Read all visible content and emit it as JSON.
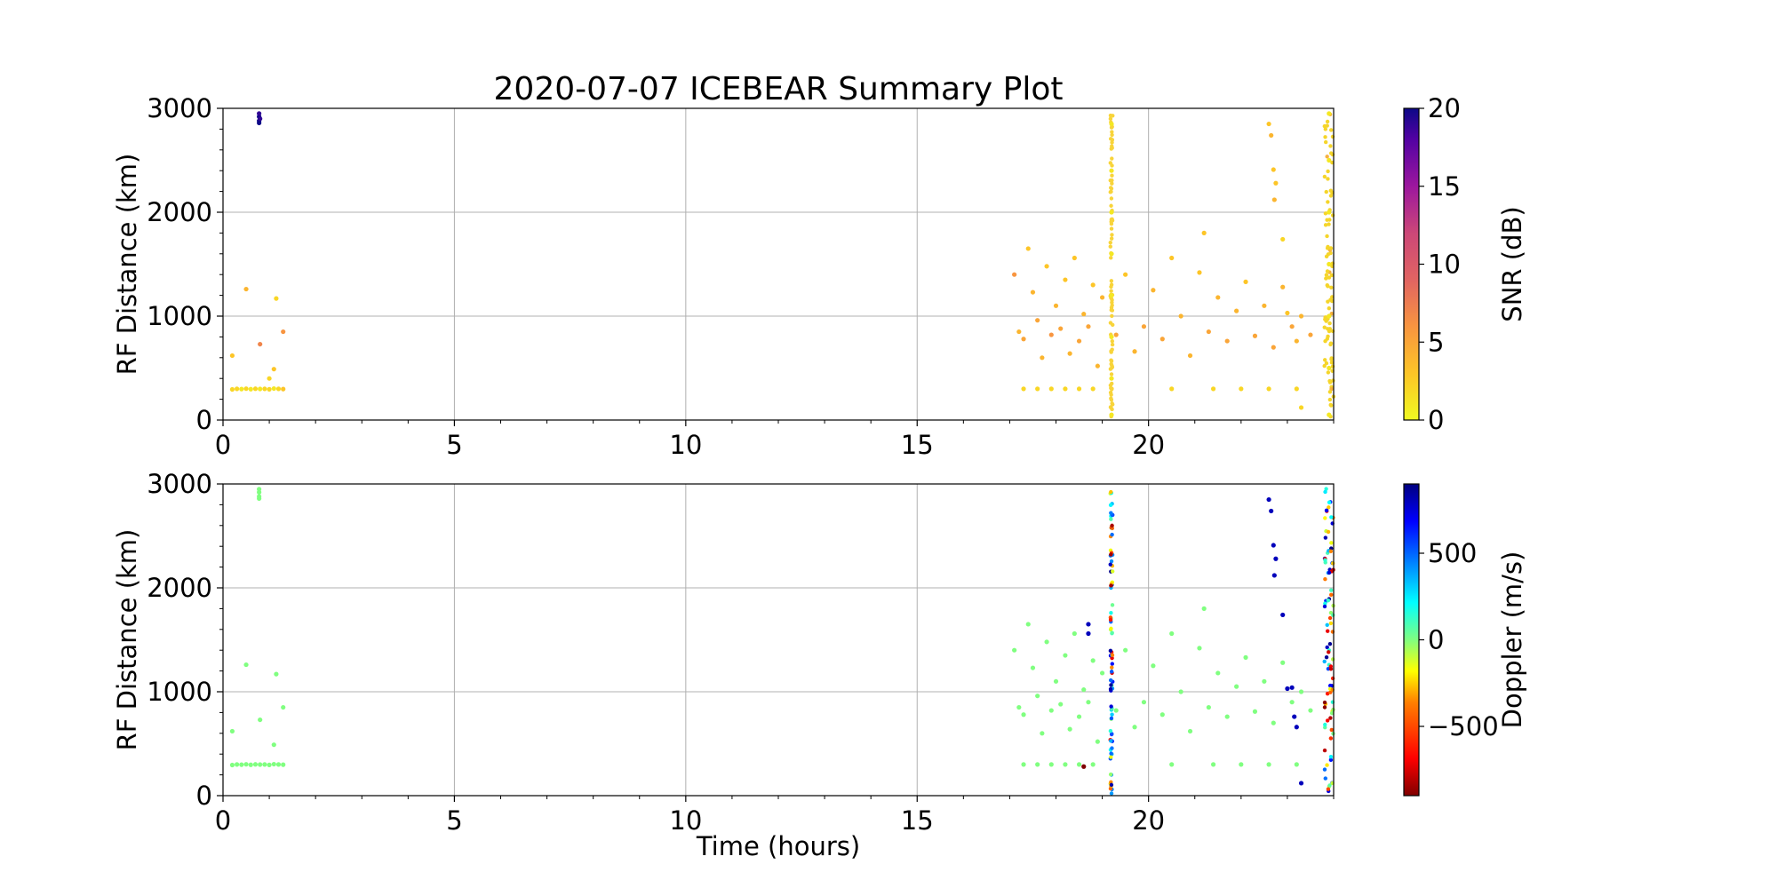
{
  "chart_data": [
    {
      "type": "scatter",
      "title": "2020-07-07 ICEBEAR Summary Plot",
      "xlabel": "",
      "ylabel": "RF Distance (km)",
      "xlim": [
        0,
        24
      ],
      "ylim": [
        0,
        3000
      ],
      "xticks": [
        "0",
        "5",
        "10",
        "15",
        "20"
      ],
      "yticks": [
        "0",
        "1000",
        "2000",
        "3000"
      ],
      "grid": true,
      "color_variable": "SNR",
      "colorbar": {
        "label": "SNR (dB)",
        "colormap": "plasma_r",
        "range": [
          0,
          20
        ],
        "ticks": [
          "0",
          "5",
          "10",
          "15",
          "20"
        ]
      },
      "points": [
        [
          0.2,
          295,
          2
        ],
        [
          0.3,
          300,
          2
        ],
        [
          0.4,
          298,
          1
        ],
        [
          0.5,
          302,
          2
        ],
        [
          0.6,
          297,
          1
        ],
        [
          0.7,
          301,
          2
        ],
        [
          0.8,
          299,
          1
        ],
        [
          0.9,
          300,
          2
        ],
        [
          1.0,
          296,
          2
        ],
        [
          1.1,
          303,
          1
        ],
        [
          1.2,
          300,
          2
        ],
        [
          1.3,
          298,
          3
        ],
        [
          0.2,
          620,
          3
        ],
        [
          0.5,
          1260,
          4
        ],
        [
          0.8,
          730,
          7
        ],
        [
          1.1,
          490,
          3
        ],
        [
          1.15,
          1170,
          2
        ],
        [
          1.3,
          850,
          6
        ],
        [
          1.0,
          400,
          2
        ],
        [
          0.78,
          2880,
          20
        ],
        [
          0.78,
          2920,
          20
        ],
        [
          0.78,
          2950,
          19
        ],
        [
          0.78,
          2860,
          20
        ],
        [
          0.8,
          2900,
          19
        ],
        [
          17.1,
          1400,
          6
        ],
        [
          17.2,
          850,
          4
        ],
        [
          17.3,
          780,
          5
        ],
        [
          17.4,
          1650,
          3
        ],
        [
          17.5,
          1230,
          4
        ],
        [
          17.6,
          960,
          5
        ],
        [
          17.7,
          600,
          4
        ],
        [
          17.8,
          1480,
          3
        ],
        [
          17.9,
          820,
          6
        ],
        [
          18.0,
          1100,
          4
        ],
        [
          18.1,
          880,
          5
        ],
        [
          18.2,
          1350,
          3
        ],
        [
          18.3,
          640,
          4
        ],
        [
          18.4,
          1560,
          3
        ],
        [
          18.5,
          760,
          5
        ],
        [
          18.6,
          1020,
          4
        ],
        [
          18.7,
          900,
          5
        ],
        [
          18.8,
          1300,
          3
        ],
        [
          18.9,
          520,
          4
        ],
        [
          19.0,
          1180,
          4
        ],
        [
          19.3,
          820,
          5
        ],
        [
          19.5,
          1400,
          3
        ],
        [
          19.7,
          660,
          4
        ],
        [
          19.9,
          900,
          5
        ],
        [
          20.1,
          1250,
          4
        ],
        [
          20.3,
          780,
          5
        ],
        [
          20.5,
          1560,
          3
        ],
        [
          20.7,
          1000,
          4
        ],
        [
          20.9,
          620,
          4
        ],
        [
          21.1,
          1420,
          3
        ],
        [
          21.3,
          850,
          5
        ],
        [
          21.5,
          1180,
          4
        ],
        [
          21.7,
          760,
          5
        ],
        [
          21.9,
          1050,
          4
        ],
        [
          22.1,
          1330,
          3
        ],
        [
          22.3,
          810,
          5
        ],
        [
          22.5,
          1100,
          4
        ],
        [
          22.7,
          700,
          5
        ],
        [
          22.9,
          1280,
          4
        ],
        [
          23.1,
          900,
          5
        ],
        [
          23.3,
          1000,
          4
        ],
        [
          23.5,
          820,
          5
        ],
        [
          17.3,
          300,
          2
        ],
        [
          17.6,
          300,
          2
        ],
        [
          17.9,
          300,
          2
        ],
        [
          18.2,
          300,
          2
        ],
        [
          18.5,
          300,
          2
        ],
        [
          18.8,
          300,
          2
        ],
        [
          20.5,
          300,
          2
        ],
        [
          21.4,
          300,
          2
        ],
        [
          22.0,
          300,
          2
        ],
        [
          22.6,
          300,
          2
        ],
        [
          23.2,
          300,
          2
        ],
        [
          22.6,
          2850,
          3
        ],
        [
          22.65,
          2740,
          4
        ],
        [
          22.7,
          2410,
          3
        ],
        [
          22.75,
          2280,
          3
        ],
        [
          22.72,
          2120,
          4
        ],
        [
          22.9,
          1740,
          2
        ],
        [
          23.0,
          1030,
          3
        ],
        [
          23.2,
          760,
          4
        ],
        [
          23.3,
          120,
          2
        ],
        [
          21.2,
          1800,
          3
        ],
        [
          19.2,
          2850,
          1
        ],
        [
          19.2,
          2400,
          1
        ],
        [
          19.2,
          2000,
          1
        ],
        [
          19.2,
          1600,
          1
        ],
        [
          19.2,
          1200,
          1
        ],
        [
          19.2,
          800,
          1
        ],
        [
          19.2,
          400,
          1
        ],
        [
          19.2,
          50,
          1
        ],
        [
          23.9,
          2950,
          1
        ],
        [
          23.9,
          2500,
          1
        ],
        [
          23.9,
          2000,
          1
        ],
        [
          23.9,
          1500,
          1
        ],
        [
          23.9,
          1000,
          1
        ],
        [
          23.9,
          500,
          1
        ],
        [
          23.9,
          50,
          1
        ]
      ]
    },
    {
      "type": "scatter",
      "title": "",
      "xlabel": "Time (hours)",
      "ylabel": "RF Distance (km)",
      "xlim": [
        0,
        24
      ],
      "ylim": [
        0,
        3000
      ],
      "xticks": [
        "0",
        "5",
        "10",
        "15",
        "20"
      ],
      "yticks": [
        "0",
        "1000",
        "2000",
        "3000"
      ],
      "grid": true,
      "color_variable": "Doppler",
      "colorbar": {
        "label": "Doppler (m/s)",
        "colormap": "jet_r",
        "range": [
          -900,
          900
        ],
        "ticks": [
          "−500",
          "0",
          "500"
        ],
        "tick_values": [
          -500,
          0,
          500
        ]
      },
      "points": [
        [
          0.2,
          295,
          0
        ],
        [
          0.3,
          300,
          0
        ],
        [
          0.4,
          298,
          0
        ],
        [
          0.5,
          302,
          0
        ],
        [
          0.6,
          297,
          0
        ],
        [
          0.7,
          301,
          0
        ],
        [
          0.8,
          299,
          0
        ],
        [
          0.9,
          300,
          0
        ],
        [
          1.0,
          296,
          0
        ],
        [
          1.1,
          303,
          0
        ],
        [
          1.2,
          300,
          0
        ],
        [
          1.3,
          298,
          0
        ],
        [
          0.2,
          620,
          0
        ],
        [
          0.5,
          1260,
          0
        ],
        [
          0.8,
          730,
          0
        ],
        [
          1.1,
          490,
          0
        ],
        [
          1.15,
          1170,
          0
        ],
        [
          1.3,
          850,
          0
        ],
        [
          0.78,
          2880,
          0
        ],
        [
          0.78,
          2920,
          0
        ],
        [
          0.78,
          2950,
          0
        ],
        [
          0.78,
          2860,
          0
        ],
        [
          17.1,
          1400,
          0
        ],
        [
          17.2,
          850,
          0
        ],
        [
          17.3,
          780,
          0
        ],
        [
          17.4,
          1650,
          0
        ],
        [
          17.5,
          1230,
          0
        ],
        [
          17.6,
          960,
          0
        ],
        [
          17.7,
          600,
          0
        ],
        [
          17.8,
          1480,
          0
        ],
        [
          17.9,
          820,
          0
        ],
        [
          18.0,
          1100,
          0
        ],
        [
          18.1,
          880,
          0
        ],
        [
          18.2,
          1350,
          0
        ],
        [
          18.3,
          640,
          0
        ],
        [
          18.4,
          1560,
          0
        ],
        [
          18.5,
          760,
          0
        ],
        [
          18.6,
          1020,
          0
        ],
        [
          18.7,
          900,
          0
        ],
        [
          18.8,
          1300,
          0
        ],
        [
          18.9,
          520,
          0
        ],
        [
          19.0,
          1180,
          0
        ],
        [
          19.3,
          820,
          0
        ],
        [
          19.5,
          1400,
          0
        ],
        [
          19.7,
          660,
          0
        ],
        [
          19.9,
          900,
          0
        ],
        [
          20.1,
          1250,
          0
        ],
        [
          20.3,
          780,
          0
        ],
        [
          20.5,
          1560,
          0
        ],
        [
          20.7,
          1000,
          0
        ],
        [
          20.9,
          620,
          0
        ],
        [
          21.1,
          1420,
          0
        ],
        [
          21.3,
          850,
          0
        ],
        [
          21.5,
          1180,
          0
        ],
        [
          21.7,
          760,
          0
        ],
        [
          21.9,
          1050,
          0
        ],
        [
          22.1,
          1330,
          0
        ],
        [
          22.3,
          810,
          0
        ],
        [
          22.5,
          1100,
          0
        ],
        [
          22.7,
          700,
          0
        ],
        [
          22.9,
          1280,
          0
        ],
        [
          23.1,
          900,
          0
        ],
        [
          23.3,
          1000,
          0
        ],
        [
          23.5,
          820,
          0
        ],
        [
          17.3,
          300,
          0
        ],
        [
          17.6,
          300,
          0
        ],
        [
          17.9,
          300,
          0
        ],
        [
          18.2,
          300,
          0
        ],
        [
          18.5,
          300,
          0
        ],
        [
          18.8,
          300,
          0
        ],
        [
          20.5,
          300,
          0
        ],
        [
          21.4,
          300,
          0
        ],
        [
          22.0,
          300,
          0
        ],
        [
          22.6,
          300,
          0
        ],
        [
          23.2,
          300,
          0
        ],
        [
          18.7,
          1650,
          800
        ],
        [
          18.7,
          1560,
          800
        ],
        [
          18.6,
          280,
          -900
        ],
        [
          22.6,
          2850,
          800
        ],
        [
          22.65,
          2740,
          800
        ],
        [
          22.7,
          2410,
          800
        ],
        [
          22.75,
          2280,
          800
        ],
        [
          22.72,
          2120,
          800
        ],
        [
          22.9,
          1740,
          800
        ],
        [
          23.0,
          1030,
          800
        ],
        [
          23.1,
          1040,
          800
        ],
        [
          23.15,
          760,
          800
        ],
        [
          23.2,
          660,
          800
        ],
        [
          23.3,
          120,
          800
        ],
        [
          21.2,
          1800,
          0
        ]
      ]
    }
  ]
}
